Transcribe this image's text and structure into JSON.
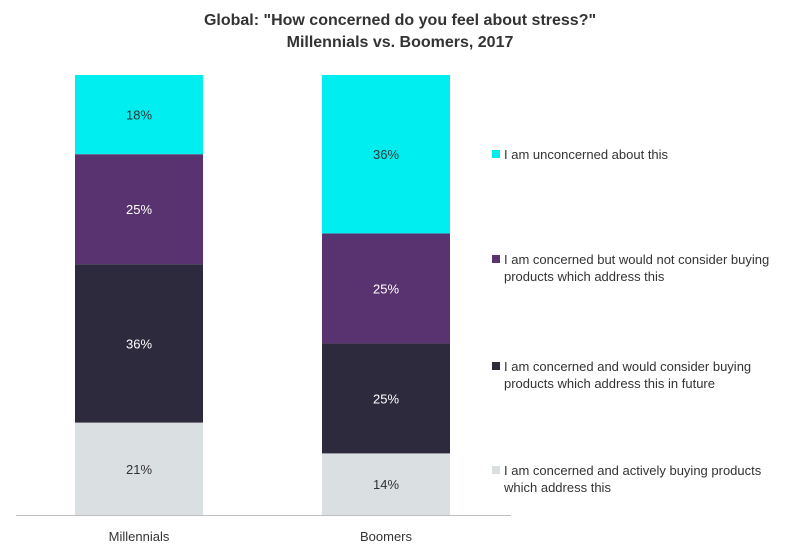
{
  "chart_data": {
    "type": "bar",
    "stacked": true,
    "title_line1": "Global: \"How concerned do you feel about stress?\"",
    "title_line2": "Millennials vs. Boomers, 2017",
    "categories": [
      "Millennials",
      "Boomers"
    ],
    "ylim": [
      0,
      100
    ],
    "grid": false,
    "legend_position": "right",
    "series": [
      {
        "name": "I am concerned and actively buying products which address this",
        "color": "#dadfe1",
        "label_color": "#333333",
        "values": [
          21,
          14
        ],
        "labels": [
          "21%",
          "14%"
        ]
      },
      {
        "name": "I am concerned and would consider buying products which address this in future",
        "color": "#2e2a3d",
        "label_color": "#ffffff",
        "values": [
          36,
          25
        ],
        "labels": [
          "36%",
          "25%"
        ]
      },
      {
        "name": "I am concerned but would not consider buying products which address this",
        "color": "#59336f",
        "label_color": "#ffffff",
        "values": [
          25,
          25
        ],
        "labels": [
          "25%",
          "25%"
        ]
      },
      {
        "name": "I am unconcerned about this",
        "color": "#00eef0",
        "label_color": "#333333",
        "values": [
          18,
          36
        ],
        "labels": [
          "18%",
          "36%"
        ]
      }
    ]
  }
}
